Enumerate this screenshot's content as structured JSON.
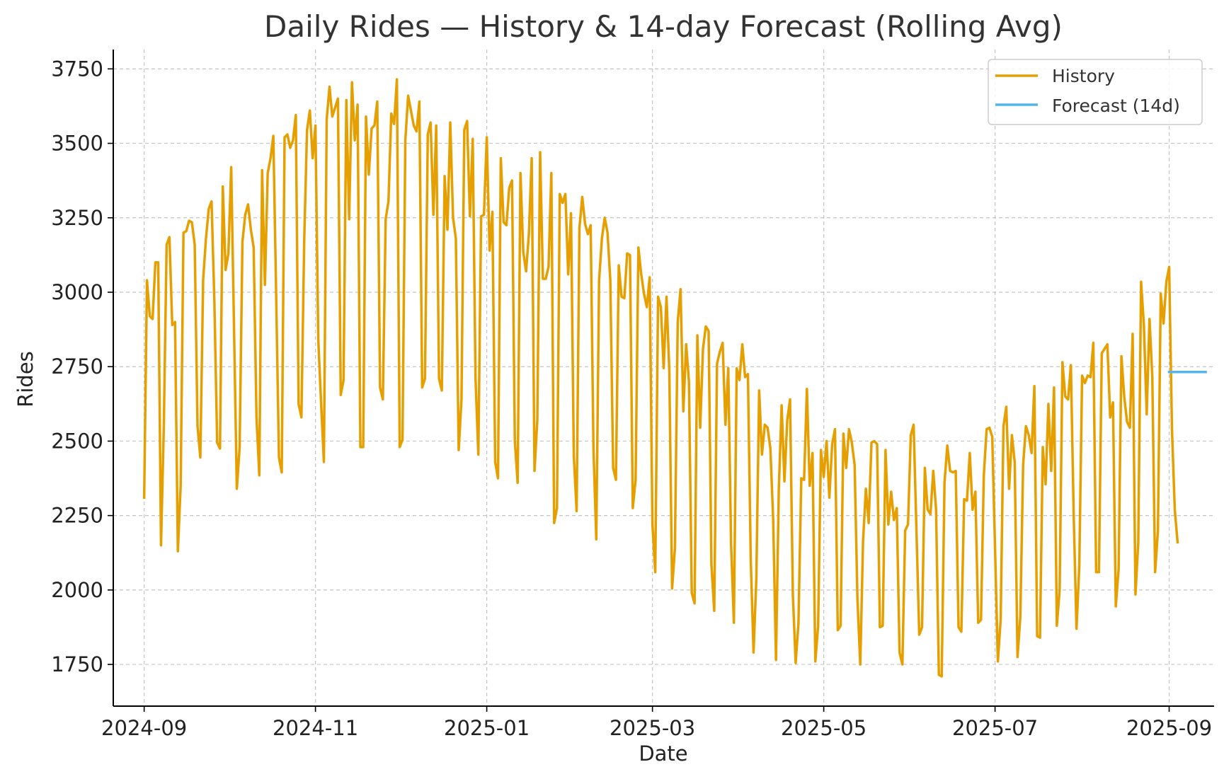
{
  "chart_data": {
    "type": "line",
    "title": "Daily Rides — History & 14-day Forecast (Rolling Avg)",
    "xlabel": "Date",
    "ylabel": "Rides",
    "x_axis_type": "date",
    "xlim": [
      "2024-08-21",
      "2025-09-17"
    ],
    "ylim": [
      1610,
      3815
    ],
    "x_ticks": [
      "2024-09",
      "2024-11",
      "2025-01",
      "2025-03",
      "2025-05",
      "2025-07",
      "2025-09"
    ],
    "x_tick_dates": [
      "2024-09-01",
      "2024-11-01",
      "2025-01-01",
      "2025-03-01",
      "2025-05-01",
      "2025-07-01",
      "2025-09-01"
    ],
    "y_ticks": [
      1750,
      2000,
      2250,
      2500,
      2750,
      3000,
      3250,
      3500,
      3750
    ],
    "grid": true,
    "legend_position": "top-right",
    "legend": [
      "History",
      "Forecast (14d)"
    ],
    "series": [
      {
        "name": "History",
        "color": "#E69F00",
        "start_date": "2024-09-01",
        "frequency": "daily",
        "values": [
          2310,
          3040,
          2920,
          2910,
          3100,
          3100,
          2150,
          2550,
          3160,
          3185,
          2890,
          2900,
          2130,
          2350,
          3200,
          3205,
          3240,
          3235,
          3160,
          2550,
          2445,
          3040,
          3180,
          3280,
          3305,
          2970,
          2495,
          2475,
          3355,
          3075,
          3130,
          3420,
          2880,
          2340,
          2480,
          3170,
          3260,
          3295,
          3210,
          3150,
          2580,
          2385,
          3410,
          3025,
          3400,
          3450,
          3525,
          2995,
          2445,
          2395,
          3520,
          3530,
          3485,
          3510,
          3595,
          2625,
          2580,
          3175,
          3545,
          3610,
          3450,
          3560,
          2840,
          2630,
          2430,
          3580,
          3690,
          3590,
          3620,
          3650,
          2655,
          2705,
          3645,
          3245,
          3705,
          3510,
          3630,
          2480,
          2480,
          3590,
          3395,
          3550,
          3560,
          3640,
          2680,
          2640,
          3245,
          3305,
          3600,
          3565,
          3715,
          2480,
          2505,
          3510,
          3660,
          3610,
          3560,
          3540,
          3640,
          2680,
          2710,
          3530,
          3570,
          3260,
          3560,
          2710,
          2670,
          3390,
          3210,
          3570,
          3250,
          3180,
          2470,
          2640,
          3545,
          3575,
          3255,
          3515,
          2710,
          2455,
          3255,
          3260,
          3520,
          3140,
          3270,
          2430,
          2375,
          3450,
          3235,
          3225,
          3350,
          3375,
          2500,
          2360,
          3400,
          3135,
          3070,
          3195,
          3450,
          2400,
          2570,
          3470,
          3045,
          3045,
          3085,
          3400,
          2225,
          2275,
          3330,
          3300,
          3330,
          3060,
          3265,
          2450,
          2265,
          3215,
          3320,
          3230,
          3195,
          3225,
          2475,
          2170,
          3040,
          3180,
          3250,
          3200,
          3040,
          2410,
          2370,
          3090,
          2985,
          2980,
          3130,
          3125,
          2275,
          2370,
          3150,
          3060,
          2995,
          2950,
          3050,
          2220,
          2060,
          2985,
          2950,
          2745,
          2985,
          2740,
          2005,
          2140,
          2900,
          3010,
          2600,
          2825,
          2700,
          1990,
          1955,
          2855,
          2545,
          2810,
          2885,
          2870,
          2085,
          1930,
          2760,
          2800,
          2830,
          2555,
          2745,
          2155,
          1890,
          2745,
          2705,
          2825,
          2715,
          2725,
          2105,
          1790,
          2040,
          2670,
          2455,
          2555,
          2545,
          2475,
          2235,
          1765,
          2340,
          2620,
          2365,
          2570,
          2640,
          1985,
          1755,
          1890,
          2375,
          2370,
          2675,
          2350,
          2460,
          1760,
          1880,
          2470,
          2380,
          2500,
          2310,
          2490,
          2540,
          1865,
          1880,
          2525,
          2410,
          2540,
          2495,
          2420,
          1970,
          1750,
          2165,
          2340,
          2225,
          2495,
          2500,
          2490,
          1875,
          1880,
          2470,
          2220,
          2330,
          2235,
          2275,
          1790,
          1750,
          2200,
          2220,
          2520,
          2555,
          2205,
          1850,
          1875,
          2410,
          2270,
          2255,
          2400,
          2270,
          1715,
          1710,
          2360,
          2485,
          2400,
          2395,
          2400,
          1875,
          1860,
          2305,
          2300,
          2460,
          2270,
          2330,
          1890,
          1900,
          2385,
          2540,
          2545,
          2515,
          2140,
          1760,
          1900,
          2550,
          2615,
          2340,
          2520,
          2430,
          1775,
          1910,
          2420,
          2550,
          2520,
          2460,
          2685,
          1845,
          1840,
          2480,
          2355,
          2625,
          2400,
          2680,
          1880,
          2000,
          2765,
          2650,
          2640,
          2755,
          2255,
          1870,
          2080,
          2720,
          2695,
          2720,
          2715,
          2830,
          2060,
          2060,
          2795,
          2810,
          2825,
          2580,
          2630,
          1945,
          2070,
          2785,
          2650,
          2565,
          2545,
          2860,
          1985,
          2160,
          3035,
          2890,
          2590,
          2910,
          2715,
          2060,
          2200,
          2995,
          2895,
          3035,
          3085,
          2540,
          2270,
          2160
        ]
      },
      {
        "name": "Forecast (14d)",
        "color": "#56B4E9",
        "start_date": "2025-09-01",
        "frequency": "daily",
        "values": [
          2732,
          2732,
          2732,
          2732,
          2732,
          2732,
          2732,
          2732,
          2732,
          2732,
          2732,
          2732,
          2732,
          2732
        ]
      }
    ]
  }
}
